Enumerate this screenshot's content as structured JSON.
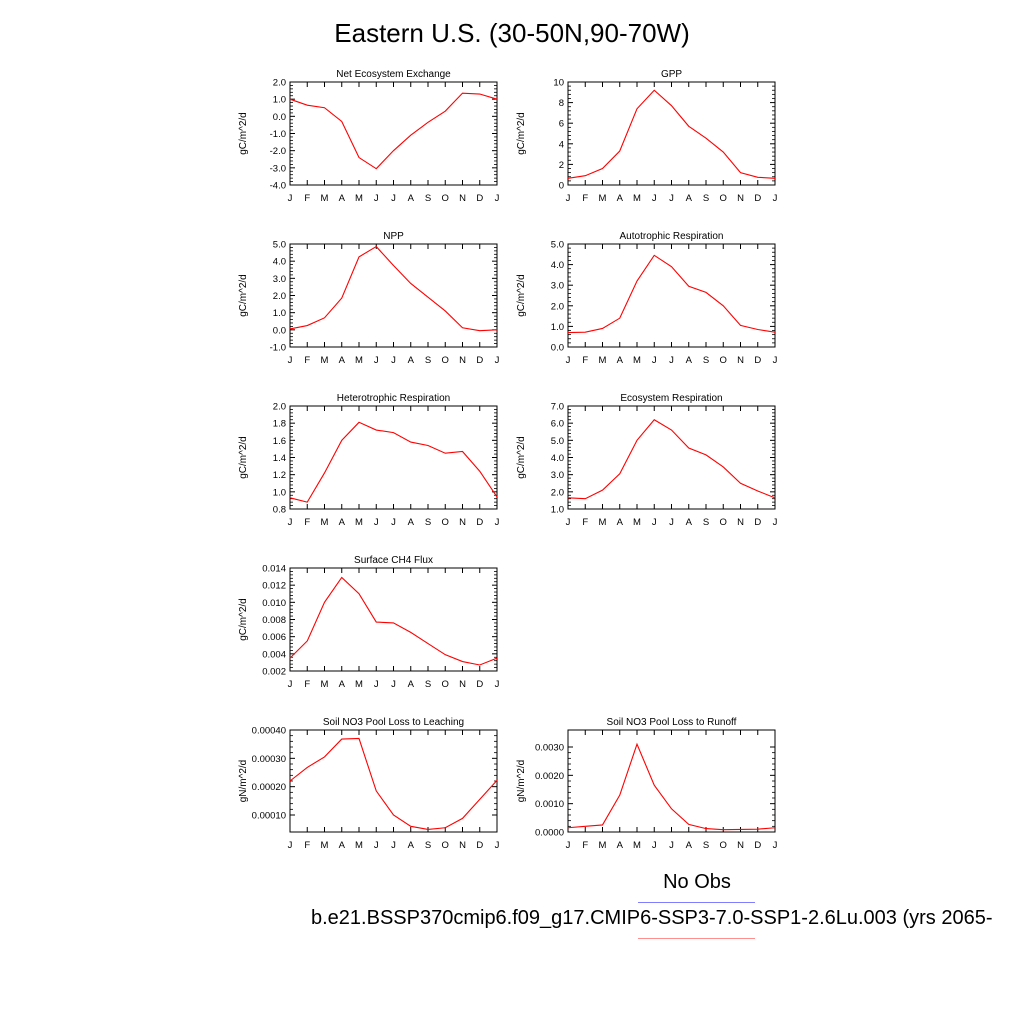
{
  "title": "Eastern U.S. (30-50N,90-70W)",
  "legend": {
    "obs_label": "No Obs",
    "model_label": "b.e21.BSSP370cmip6.f09_g17.CMIP6-SSP3-7.0-SSP1-2.6Lu.003 (yrs 2065-",
    "obs_color": "#7f7fff",
    "model_color": "#ff8f8f"
  },
  "line_color": "#ff0000",
  "chart_data": [
    {
      "type": "line",
      "title": "Net Ecosystem Exchange",
      "ylabel": "gC/m^2/d",
      "x": [
        "J",
        "F",
        "M",
        "A",
        "M",
        "J",
        "J",
        "A",
        "S",
        "O",
        "N",
        "D",
        "J"
      ],
      "values": [
        1.0,
        0.65,
        0.5,
        -0.3,
        -2.4,
        -3.05,
        -2.0,
        -1.1,
        -0.35,
        0.3,
        1.35,
        1.3,
        1.0
      ],
      "ylim": [
        -4.0,
        2.0
      ],
      "yticks": [
        "-4.0",
        "-3.0",
        "-2.0",
        "-1.0",
        "0.0",
        "1.0",
        "2.0"
      ]
    },
    {
      "type": "line",
      "title": "GPP",
      "ylabel": "gC/m^2/d",
      "x": [
        "J",
        "F",
        "M",
        "A",
        "M",
        "J",
        "J",
        "A",
        "S",
        "O",
        "N",
        "D",
        "J"
      ],
      "values": [
        0.65,
        0.9,
        1.6,
        3.3,
        7.4,
        9.2,
        7.7,
        5.7,
        4.55,
        3.2,
        1.2,
        0.75,
        0.65
      ],
      "ylim": [
        0,
        10
      ],
      "yticks": [
        "0",
        "2",
        "4",
        "6",
        "8",
        "10"
      ]
    },
    {
      "type": "line",
      "title": "NPP",
      "ylabel": "gC/m^2/d",
      "x": [
        "J",
        "F",
        "M",
        "A",
        "M",
        "J",
        "J",
        "A",
        "S",
        "O",
        "N",
        "D",
        "J"
      ],
      "values": [
        0.05,
        0.25,
        0.7,
        1.85,
        4.25,
        4.85,
        3.75,
        2.7,
        1.9,
        1.1,
        0.12,
        -0.05,
        0.0
      ],
      "ylim": [
        -1.0,
        5.0
      ],
      "yticks": [
        "-1.0",
        "0.0",
        "1.0",
        "2.0",
        "3.0",
        "4.0",
        "5.0"
      ]
    },
    {
      "type": "line",
      "title": "Autotrophic Respiration",
      "ylabel": "gC/m^2/d",
      "x": [
        "J",
        "F",
        "M",
        "A",
        "M",
        "J",
        "J",
        "A",
        "S",
        "O",
        "N",
        "D",
        "J"
      ],
      "values": [
        0.7,
        0.72,
        0.9,
        1.4,
        3.2,
        4.45,
        3.9,
        2.95,
        2.65,
        2.0,
        1.05,
        0.85,
        0.72
      ],
      "ylim": [
        0.0,
        5.0
      ],
      "yticks": [
        "0.0",
        "1.0",
        "2.0",
        "3.0",
        "4.0",
        "5.0"
      ]
    },
    {
      "type": "line",
      "title": "Heterotrophic Respiration",
      "ylabel": "gC/m^2/d",
      "x": [
        "J",
        "F",
        "M",
        "A",
        "M",
        "J",
        "J",
        "A",
        "S",
        "O",
        "N",
        "D",
        "J"
      ],
      "values": [
        0.93,
        0.88,
        1.22,
        1.6,
        1.81,
        1.72,
        1.69,
        1.58,
        1.54,
        1.45,
        1.47,
        1.24,
        0.94
      ],
      "ylim": [
        0.8,
        2.0
      ],
      "yticks": [
        "0.8",
        "1.0",
        "1.2",
        "1.4",
        "1.6",
        "1.8",
        "2.0"
      ]
    },
    {
      "type": "line",
      "title": "Ecosystem Respiration",
      "ylabel": "gC/m^2/d",
      "x": [
        "J",
        "F",
        "M",
        "A",
        "M",
        "J",
        "J",
        "A",
        "S",
        "O",
        "N",
        "D",
        "J"
      ],
      "values": [
        1.65,
        1.6,
        2.1,
        3.05,
        5.0,
        6.2,
        5.6,
        4.55,
        4.15,
        3.45,
        2.5,
        2.05,
        1.65
      ],
      "ylim": [
        1.0,
        7.0
      ],
      "yticks": [
        "1.0",
        "2.0",
        "3.0",
        "4.0",
        "5.0",
        "6.0",
        "7.0"
      ]
    },
    {
      "type": "line",
      "title": "Surface CH4 Flux",
      "ylabel": "gC/m^2/d",
      "x": [
        "J",
        "F",
        "M",
        "A",
        "M",
        "J",
        "J",
        "A",
        "S",
        "O",
        "N",
        "D",
        "J"
      ],
      "values": [
        0.0035,
        0.0055,
        0.01,
        0.0129,
        0.011,
        0.0077,
        0.0076,
        0.0065,
        0.0052,
        0.0039,
        0.0031,
        0.0027,
        0.0035
      ],
      "ylim": [
        0.002,
        0.014
      ],
      "yticks": [
        "0.002",
        "0.004",
        "0.006",
        "0.008",
        "0.010",
        "0.012",
        "0.014"
      ]
    },
    {
      "type": "line",
      "title": "Soil NO3 Pool Loss to Leaching",
      "ylabel": "gN/m^2/d",
      "x": [
        "J",
        "F",
        "M",
        "A",
        "M",
        "J",
        "J",
        "A",
        "S",
        "O",
        "N",
        "D",
        "J"
      ],
      "values": [
        0.00022,
        0.000268,
        0.000305,
        0.000368,
        0.00037,
        0.000185,
        0.0001,
        6e-05,
        4.9e-05,
        5.5e-05,
        8.8e-05,
        0.000155,
        0.000222
      ],
      "ylim": [
        4e-05,
        0.0004
      ],
      "yticks": [
        "0.00010",
        "0.00020",
        "0.00030",
        "0.00040"
      ],
      "ytick_values": [
        0.0001,
        0.0002,
        0.0003,
        0.0004
      ]
    },
    {
      "type": "line",
      "title": "Soil NO3 Pool Loss to Runoff",
      "ylabel": "gN/m^2/d",
      "x": [
        "J",
        "F",
        "M",
        "A",
        "M",
        "J",
        "J",
        "A",
        "S",
        "O",
        "N",
        "D",
        "J"
      ],
      "values": [
        0.00015,
        0.0002,
        0.00025,
        0.0013,
        0.0031,
        0.00165,
        0.00082,
        0.00027,
        0.00012,
        8e-05,
        9e-05,
        0.0001,
        0.00015
      ],
      "ylim": [
        0.0,
        0.0036
      ],
      "yticks": [
        "0.0000",
        "0.0010",
        "0.0020",
        "0.0030"
      ],
      "ytick_values": [
        0.0,
        0.001,
        0.002,
        0.003
      ]
    }
  ]
}
